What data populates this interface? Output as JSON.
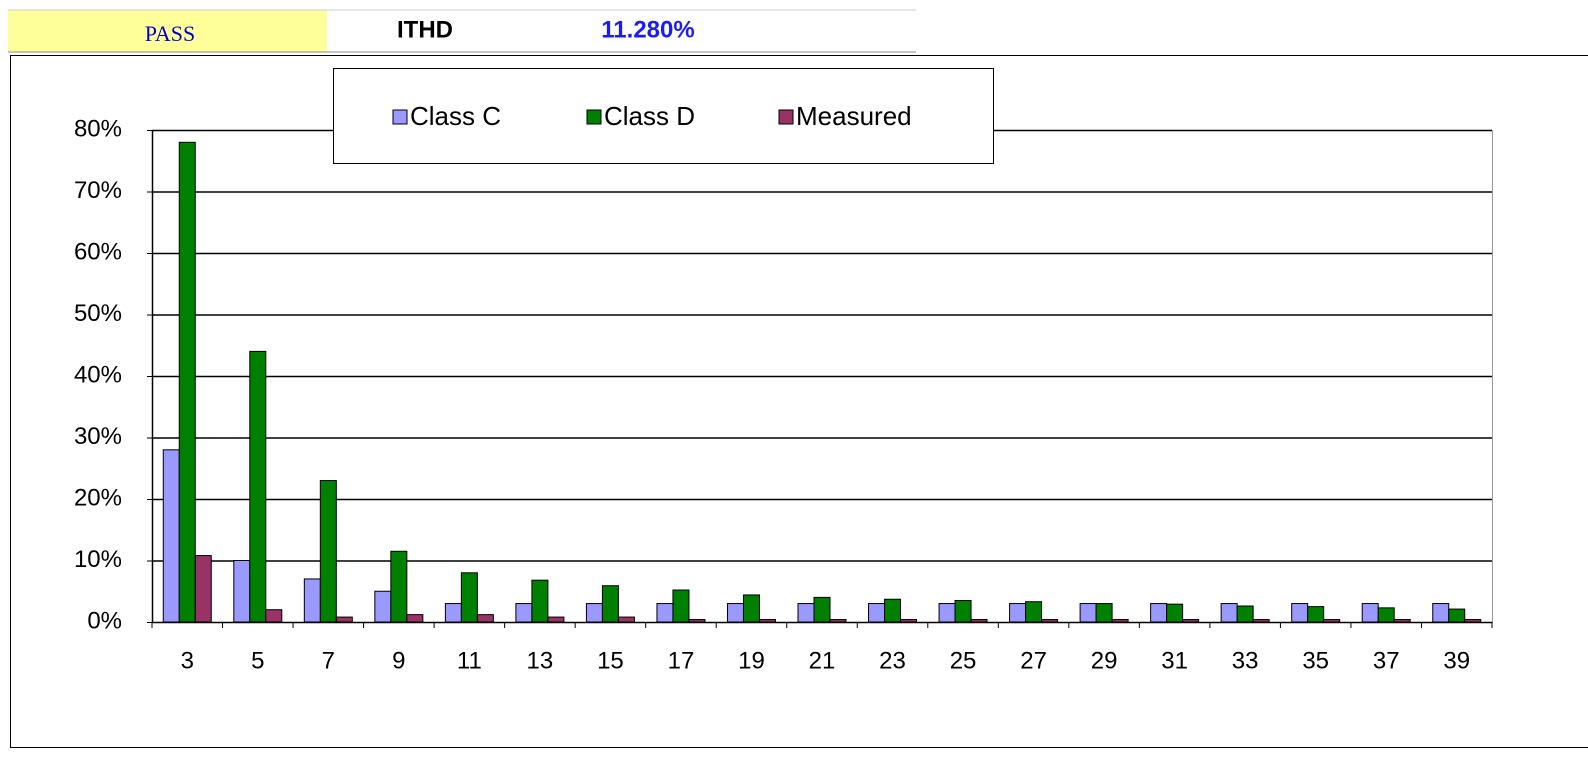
{
  "header": {
    "status": "PASS",
    "metric": "ITHD",
    "metric_value": "11.280%"
  },
  "chart_data": {
    "type": "bar",
    "categories": [
      "3",
      "5",
      "7",
      "9",
      "11",
      "13",
      "15",
      "17",
      "19",
      "21",
      "23",
      "25",
      "27",
      "29",
      "31",
      "33",
      "35",
      "37",
      "39"
    ],
    "series": [
      {
        "name": "Class C",
        "color": "#9999ff",
        "values": [
          28,
          10,
          7,
          5,
          3,
          3,
          3,
          3,
          3,
          3,
          3,
          3,
          3,
          3,
          3,
          3,
          3,
          3,
          3
        ]
      },
      {
        "name": "Class D",
        "color": "#008000",
        "values": [
          78,
          44,
          23,
          11.5,
          8,
          6.8,
          5.9,
          5.2,
          4.4,
          4,
          3.7,
          3.5,
          3.3,
          3,
          2.9,
          2.6,
          2.5,
          2.3,
          2.1
        ]
      },
      {
        "name": "Measured",
        "color": "#993366",
        "values": [
          10.8,
          2,
          0.8,
          1.2,
          1.2,
          0.8,
          0.8,
          0.4,
          0.4,
          0.4,
          0.4,
          0.4,
          0.4,
          0.4,
          0.4,
          0.4,
          0.4,
          0.4,
          0.4
        ]
      }
    ],
    "ylim": [
      0,
      80
    ],
    "yticks": [
      {
        "value": 0,
        "label": "0%"
      },
      {
        "value": 10,
        "label": "10%"
      },
      {
        "value": 20,
        "label": "20%"
      },
      {
        "value": 30,
        "label": "30%"
      },
      {
        "value": 40,
        "label": "40%"
      },
      {
        "value": 50,
        "label": "50%"
      },
      {
        "value": 60,
        "label": "60%"
      },
      {
        "value": 70,
        "label": "70%"
      },
      {
        "value": 80,
        "label": "80%"
      }
    ],
    "grid": true
  }
}
